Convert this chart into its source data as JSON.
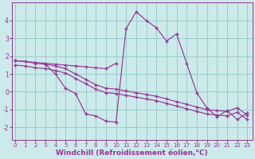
{
  "bg_color": "#cceaea",
  "line_color": "#993399",
  "grid_color": "#99cccc",
  "xlabel": "Windchill (Refroidissement éolien,°C)",
  "xlabel_fontsize": 6.5,
  "xticks": [
    0,
    1,
    2,
    3,
    4,
    5,
    6,
    7,
    8,
    9,
    10,
    11,
    12,
    13,
    14,
    15,
    16,
    17,
    18,
    19,
    20,
    21,
    22,
    23
  ],
  "yticks": [
    -2,
    -1,
    0,
    1,
    2,
    3,
    4
  ],
  "ylim": [
    -2.7,
    5.0
  ],
  "xlim": [
    -0.3,
    23.5
  ],
  "series1_x": [
    0,
    1,
    2,
    3,
    4,
    5,
    6,
    7,
    8,
    9,
    10
  ],
  "series1_y": [
    1.75,
    1.7,
    1.65,
    1.6,
    1.55,
    1.5,
    1.45,
    1.4,
    1.35,
    1.3,
    1.6
  ],
  "series2_x": [
    0,
    1,
    2,
    3,
    4,
    5,
    6,
    7,
    8,
    9,
    10,
    11,
    12,
    13,
    14,
    15,
    16,
    17,
    18,
    19,
    20,
    21,
    22,
    23
  ],
  "series2_y": [
    1.75,
    1.7,
    1.6,
    1.55,
    1.45,
    1.3,
    1.0,
    0.7,
    0.4,
    0.2,
    0.15,
    0.05,
    -0.05,
    -0.15,
    -0.25,
    -0.4,
    -0.55,
    -0.7,
    -0.85,
    -1.0,
    -1.05,
    -1.1,
    -0.9,
    -1.3
  ],
  "series3_x": [
    0,
    1,
    2,
    3,
    4,
    5,
    6,
    7,
    8,
    9,
    10,
    11,
    12,
    13,
    14,
    15,
    16,
    17,
    18,
    19,
    20,
    21,
    22,
    23
  ],
  "series3_y": [
    1.5,
    1.45,
    1.35,
    1.3,
    1.2,
    1.05,
    0.75,
    0.45,
    0.15,
    -0.05,
    -0.1,
    -0.2,
    -0.3,
    -0.4,
    -0.5,
    -0.65,
    -0.8,
    -0.95,
    -1.1,
    -1.25,
    -1.3,
    -1.35,
    -1.15,
    -1.55
  ],
  "series4_x": [
    3,
    4,
    5,
    6,
    7,
    8,
    9,
    10,
    11,
    12,
    13,
    14,
    15,
    16,
    17,
    18,
    19,
    20,
    21,
    22,
    23
  ],
  "series4_y": [
    1.55,
    1.0,
    0.2,
    -0.1,
    -1.25,
    -1.35,
    -1.65,
    -1.7,
    3.55,
    4.5,
    4.0,
    3.6,
    2.85,
    3.25,
    1.6,
    -0.05,
    -0.9,
    -1.4,
    -1.05,
    -1.55,
    -1.2
  ]
}
